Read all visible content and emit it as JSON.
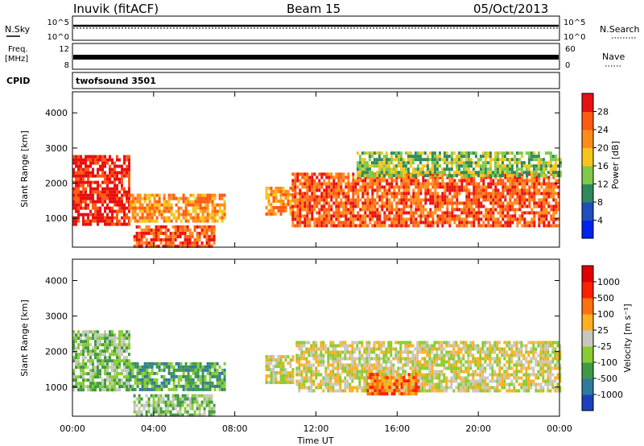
{
  "header": {
    "station": "Inuvik (fitACF)",
    "beam": "Beam 15",
    "date": "05/Oct/2013"
  },
  "panels": {
    "nsky": {
      "label": "N.Sky",
      "ticks": [
        "10^5",
        "10^0"
      ]
    },
    "nsearch": {
      "label": "N.Search"
    },
    "freq": {
      "label_top": "Freq.",
      "label_unit": "[MHz]",
      "ticks": [
        "12",
        "8"
      ]
    },
    "nave": {
      "label": "Nave",
      "ticks": [
        "60",
        "0"
      ]
    },
    "cpid": {
      "label": "CPID",
      "value": "twofsound 3501"
    }
  },
  "chart_data": [
    {
      "type": "heatmap",
      "name": "power",
      "ylabel": "Slant Range [km]",
      "xlabel": "Time UT",
      "x_ticks": [
        "00:00",
        "04:00",
        "08:00",
        "12:00",
        "16:00",
        "20:00",
        "00:00"
      ],
      "x_range_hours": [
        0,
        24
      ],
      "ylim": [
        180,
        4600
      ],
      "y_ticks": [
        1000,
        2000,
        3000,
        4000
      ],
      "colorbar": {
        "label": "Power [dB]",
        "ticks": [
          4,
          8,
          12,
          16,
          20,
          24,
          28
        ],
        "colors": [
          "#0022ee",
          "#1f4fbf",
          "#2e8a5a",
          "#7fc84a",
          "#f5c51c",
          "#ff8c1a",
          "#ff5a12",
          "#e81010"
        ]
      },
      "echo_bands": [
        {
          "t": [
            0.0,
            2.8
          ],
          "r": [
            800,
            2800
          ],
          "level": 26
        },
        {
          "t": [
            2.8,
            7.5
          ],
          "r": [
            900,
            1700
          ],
          "level": 18
        },
        {
          "t": [
            3.0,
            7.0
          ],
          "r": [
            250,
            800
          ],
          "level": 22
        },
        {
          "t": [
            9.5,
            10.9
          ],
          "r": [
            1100,
            1900
          ],
          "level": 18
        },
        {
          "t": [
            10.8,
            24.0
          ],
          "r": [
            800,
            2300
          ],
          "level": 24
        },
        {
          "t": [
            14.0,
            24.0
          ],
          "r": [
            2200,
            2900
          ],
          "level": 12
        }
      ]
    },
    {
      "type": "heatmap",
      "name": "velocity",
      "ylabel": "Slant Range [km]",
      "xlabel": "Time UT",
      "x_ticks": [
        "00:00",
        "04:00",
        "08:00",
        "12:00",
        "16:00",
        "20:00",
        "00:00"
      ],
      "x_range_hours": [
        0,
        24
      ],
      "ylim": [
        180,
        4600
      ],
      "y_ticks": [
        1000,
        2000,
        3000,
        4000
      ],
      "colorbar": {
        "label": "Velocity [m s⁻¹]",
        "ticks": [
          "1000",
          "500",
          "100",
          "25",
          "-25",
          "-100",
          "-500",
          "-1000"
        ],
        "colors": [
          "#1c40c0",
          "#2f7a9e",
          "#3f9a45",
          "#88cc33",
          "#c8c8be",
          "#ffb020",
          "#ff7010",
          "#ff2000",
          "#e00000"
        ]
      },
      "echo_bands": [
        {
          "t": [
            0.0,
            2.8
          ],
          "r": [
            900,
            2600
          ],
          "level": 3
        },
        {
          "t": [
            2.8,
            7.5
          ],
          "r": [
            900,
            1700
          ],
          "level": 2
        },
        {
          "t": [
            3.0,
            7.0
          ],
          "r": [
            250,
            800
          ],
          "level": 3
        },
        {
          "t": [
            9.5,
            10.9
          ],
          "r": [
            1100,
            1900
          ],
          "level": 4
        },
        {
          "t": [
            11.0,
            24.0
          ],
          "r": [
            900,
            2300
          ],
          "level": 4
        },
        {
          "t": [
            14.5,
            17.0
          ],
          "r": [
            800,
            1400
          ],
          "level": 6
        }
      ]
    }
  ]
}
